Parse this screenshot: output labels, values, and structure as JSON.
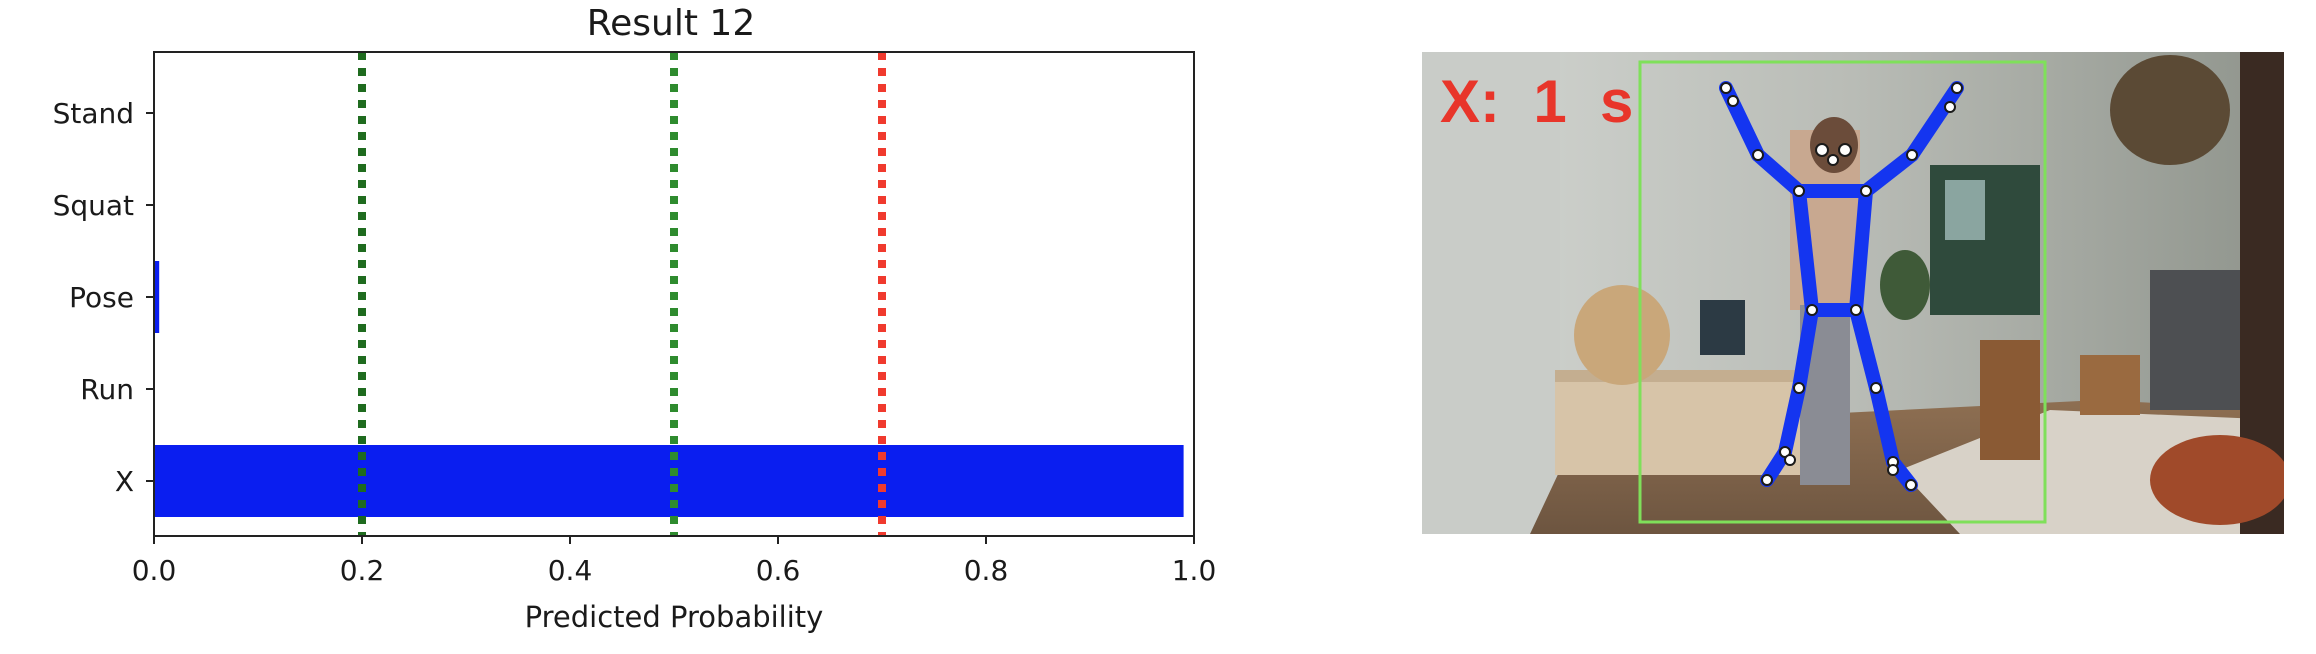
{
  "chart_data": {
    "type": "bar",
    "orientation": "horizontal",
    "title": "Result 12",
    "xlabel": "Predicted Probability",
    "ylabel": "",
    "xlim": [
      0.0,
      1.0
    ],
    "xticks": [
      "0.0",
      "0.2",
      "0.4",
      "0.6",
      "0.8",
      "1.0"
    ],
    "categories": [
      "Stand",
      "Squat",
      "Pose",
      "Run",
      "X"
    ],
    "values": [
      0.0,
      0.0,
      0.005,
      0.0,
      0.99
    ],
    "bar_color": "#0a1ef0",
    "thresholds": [
      {
        "value": 0.2,
        "color": "#1f6b1f"
      },
      {
        "value": 0.5,
        "color": "#2e8b2e"
      },
      {
        "value": 0.7,
        "color": "#f03a2e"
      }
    ]
  },
  "video_frame": {
    "timer_label": "X:  1  s",
    "timer_color": "#e8352a",
    "bbox_color": "#7fe05a",
    "skeleton_color": "#1435f0"
  }
}
